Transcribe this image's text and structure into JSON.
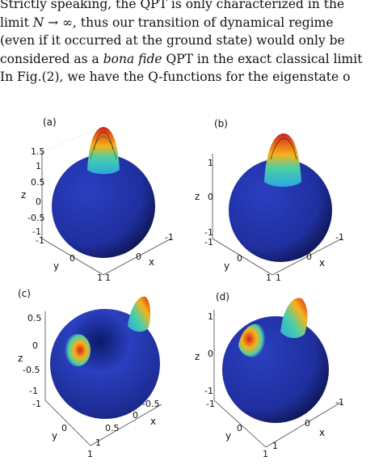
{
  "paper_text": {
    "lines": [
      "Strictly speaking, the QPT is only characterized in the",
      "limit N → ∞, thus our transition of dynamical regime",
      "(even if it occurred at the ground state) would only be",
      "considered as a bona fide QPT in the exact classical limit",
      "In Fig.(2), we have the Q-functions for the eigenstate o"
    ]
  },
  "figure": {
    "panels": [
      {
        "label": "(a)",
        "z_ticks": [
          "1.5",
          "1",
          "0.5",
          "0",
          "-0.5",
          "-1"
        ],
        "y_ticks": [
          "-1",
          "0",
          "1"
        ],
        "x_ticks": [
          "-1",
          "0",
          "1"
        ],
        "axis_labels": {
          "z": "z",
          "y": "y",
          "x": "x"
        }
      },
      {
        "label": "(b)",
        "z_ticks": [
          "1",
          "0",
          "-1"
        ],
        "y_ticks": [
          "-1",
          "0",
          "1"
        ],
        "x_ticks": [
          "-1",
          "0",
          "1"
        ],
        "axis_labels": {
          "z": "z",
          "y": "y",
          "x": "x"
        }
      },
      {
        "label": "(c)",
        "z_ticks": [
          "0.5",
          "0",
          "-0.5",
          "-1"
        ],
        "y_ticks": [
          "-1",
          "0",
          "1"
        ],
        "x_ticks": [
          "-0.5",
          "0",
          "0.5",
          "1"
        ],
        "axis_labels": {
          "z": "z",
          "y": "y",
          "x": "x"
        }
      },
      {
        "label": "(d)",
        "z_ticks": [
          "1",
          "0",
          "-1"
        ],
        "y_ticks": [
          "-1",
          "0",
          "1"
        ],
        "x_ticks": [
          "-1",
          "0",
          "1"
        ],
        "axis_labels": {
          "z": "z",
          "y": "y",
          "x": "x"
        }
      }
    ],
    "colors": {
      "sphere": "#1f2f9e",
      "peak_hot": "#d4201a",
      "peak_warm": "#f6b21a",
      "peak_mid": "#4bd0a6"
    }
  }
}
